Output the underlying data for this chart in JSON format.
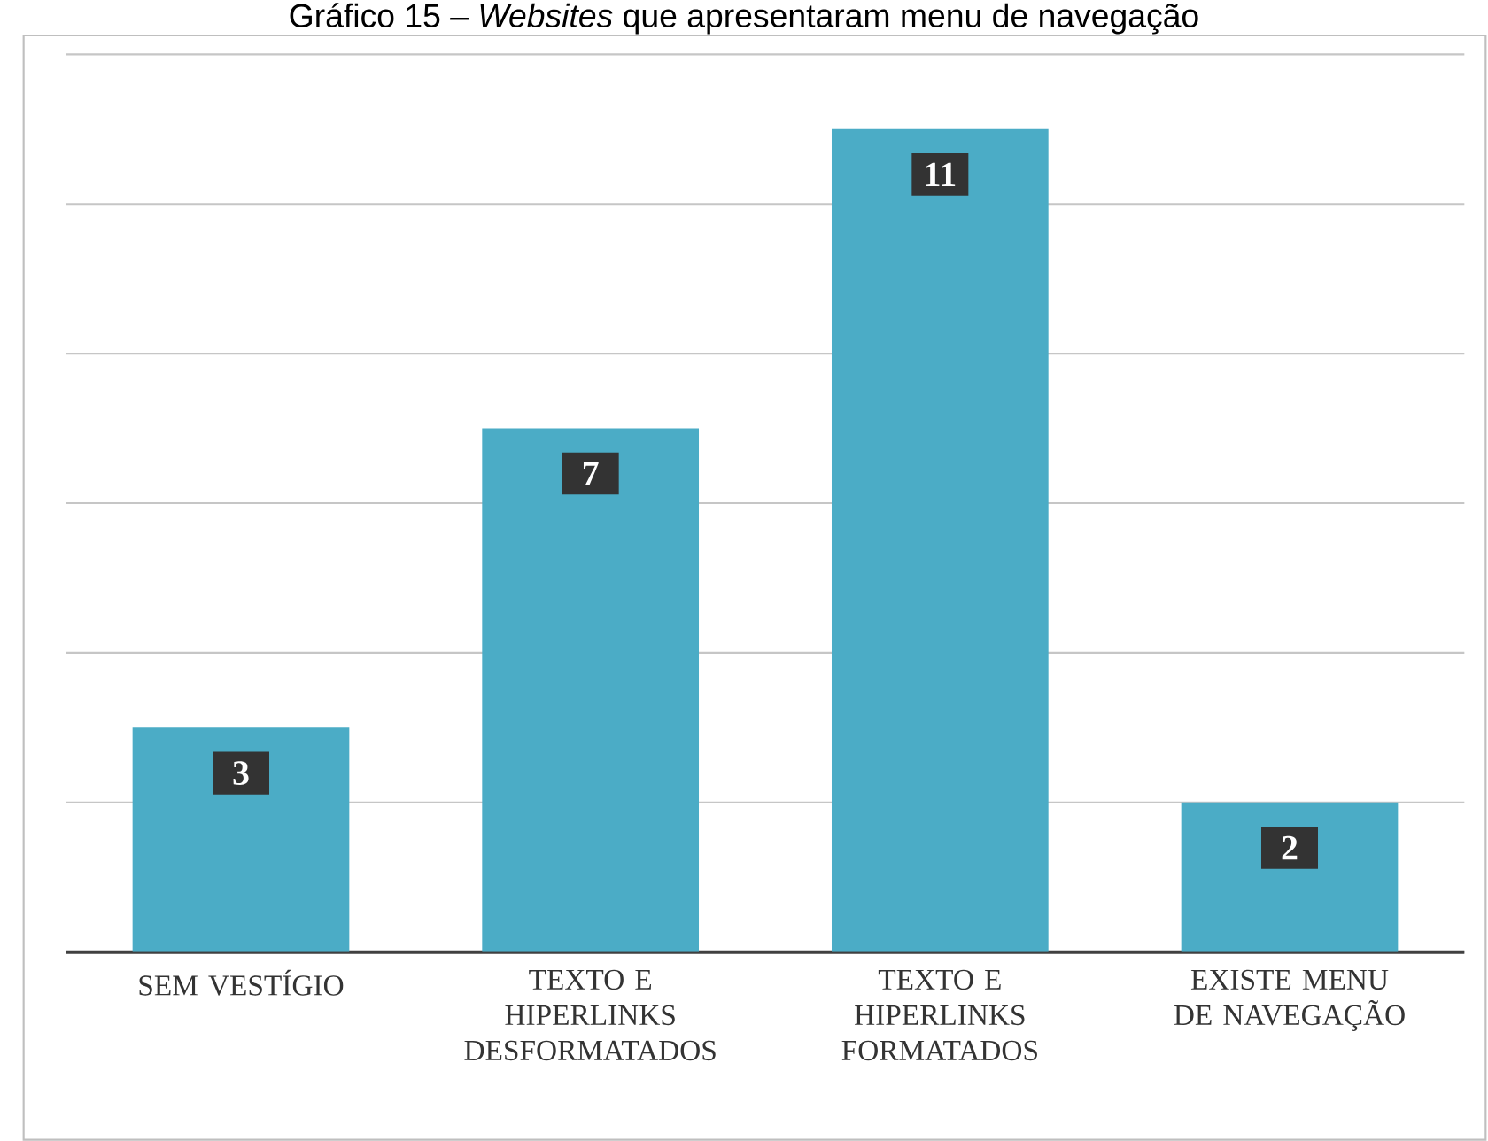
{
  "chart_data": {
    "type": "bar",
    "title": "Gráfico 15 – *Websites* que apresentaram menu de navegação",
    "categories": [
      "SEM VESTÍGIO",
      "TEXTO E HIPERLINKS DESFORMATADOS",
      "TEXTO E HIPERLINKS FORMATADOS",
      "EXISTE MENU DE NAVEGAÇÃO"
    ],
    "values": [
      3,
      7,
      11,
      2
    ],
    "color": "#4bacc6",
    "data_labels": true,
    "ylim": [
      0,
      12
    ],
    "yticks": [
      {
        "value": 0,
        "label": null
      },
      {
        "value": 2,
        "label": null
      },
      {
        "value": 4,
        "label": null
      },
      {
        "value": 6,
        "label": null
      },
      {
        "value": 8,
        "label": null
      },
      {
        "value": 10,
        "label": null
      },
      {
        "value": 12,
        "label": null
      }
    ],
    "grid": "y",
    "tick_labels": "x"
  }
}
